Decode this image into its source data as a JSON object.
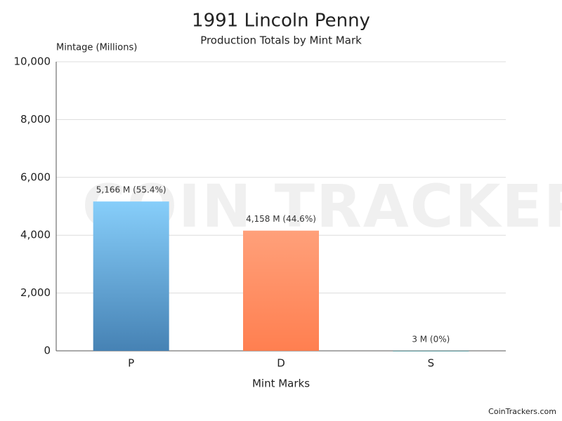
{
  "chart_data": {
    "type": "bar",
    "title": "1991 Lincoln Penny",
    "subtitle": "Production Totals by Mint Mark",
    "y_label": "Mintage (Millions)",
    "x_label": "Mint Marks",
    "categories": [
      "P",
      "D",
      "S"
    ],
    "values": [
      5166,
      4158,
      3
    ],
    "value_labels": [
      "5,166 M (55.4%)",
      "4,158 M (44.6%)",
      "3 M (0%)"
    ],
    "colors": [
      [
        "#87cefa",
        "#4682b4"
      ],
      [
        "#ffa07a",
        "#ff7f50"
      ],
      [
        "#6fb3b8",
        "#4a8a8f"
      ]
    ],
    "ylim": [
      0,
      10000
    ],
    "yticks": [
      0,
      {
        "value": 2000,
        "label": "2,000"
      },
      {
        "value": 4000,
        "label": "4,000"
      },
      {
        "value": 6000,
        "label": "6,000"
      },
      {
        "value": 8000,
        "label": "8,000"
      },
      {
        "value": 10000,
        "label": "10,000"
      }
    ],
    "grid": true,
    "watermark": "COIN TRACKERS",
    "credit": "CoinTrackers.com"
  }
}
